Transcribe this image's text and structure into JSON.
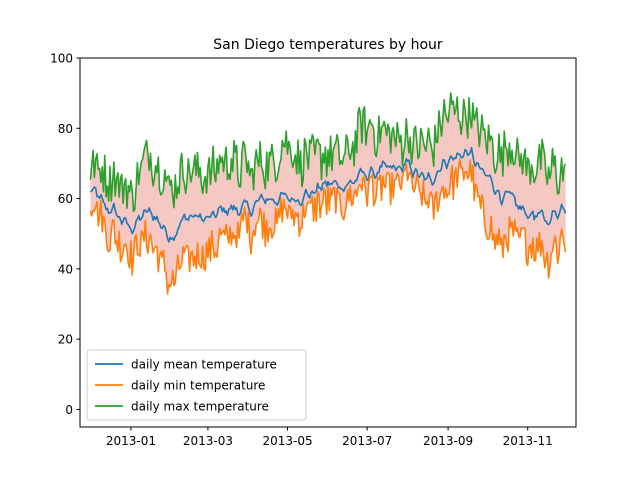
{
  "chart_data": {
    "type": "line",
    "title": "San Diego temperatures by hour",
    "xlabel": "",
    "ylabel": "",
    "x_range": [
      "2012-11-23",
      "2013-12-08"
    ],
    "xlim_dates": [
      "2012-11-23",
      "2013-12-08"
    ],
    "ylim": [
      -5,
      100
    ],
    "x_ticks": [
      "2013-01",
      "2013-03",
      "2013-05",
      "2013-07",
      "2013-09",
      "2013-11"
    ],
    "y_ticks": [
      0,
      20,
      40,
      60,
      80,
      100
    ],
    "grid": false,
    "legend_location": "lower left",
    "fill_between": {
      "lower": "daily min temperature",
      "upper": "daily max temperature",
      "color": "#f4c2bd"
    },
    "keypoints_note": "values sampled at approximately every 2 weeks; daily detail rendered from these keypoints",
    "x": [
      "2012-12-01",
      "2012-12-15",
      "2013-01-01",
      "2013-01-15",
      "2013-02-01",
      "2013-02-15",
      "2013-03-01",
      "2013-03-15",
      "2013-04-01",
      "2013-04-15",
      "2013-05-01",
      "2013-05-15",
      "2013-06-01",
      "2013-06-15",
      "2013-07-01",
      "2013-07-15",
      "2013-08-01",
      "2013-08-15",
      "2013-09-01",
      "2013-09-15",
      "2013-10-01",
      "2013-10-15",
      "2013-11-01",
      "2013-11-15",
      "2013-11-30"
    ],
    "series": [
      {
        "name": "daily mean temperature",
        "color": "#1f77b4",
        "values": [
          62,
          57,
          52,
          56,
          50,
          55,
          54,
          57,
          57,
          60,
          60,
          61,
          64,
          64,
          67,
          68,
          69,
          65,
          71,
          73,
          66,
          60,
          56,
          54,
          58
        ]
      },
      {
        "name": "daily min temperature",
        "color": "#ff7f0e",
        "values": [
          59,
          50,
          45,
          48,
          38,
          43,
          44,
          49,
          52,
          53,
          56,
          57,
          59,
          60,
          64,
          61,
          66,
          58,
          64,
          68,
          52,
          47,
          48,
          44,
          50
        ]
      },
      {
        "name": "daily max temperature",
        "color": "#2ca02c",
        "values": [
          68,
          66,
          62,
          72,
          65,
          68,
          66,
          71,
          68,
          70,
          75,
          72,
          72,
          73,
          81,
          77,
          76,
          74,
          85,
          84,
          76,
          73,
          70,
          68,
          68
        ]
      }
    ]
  }
}
